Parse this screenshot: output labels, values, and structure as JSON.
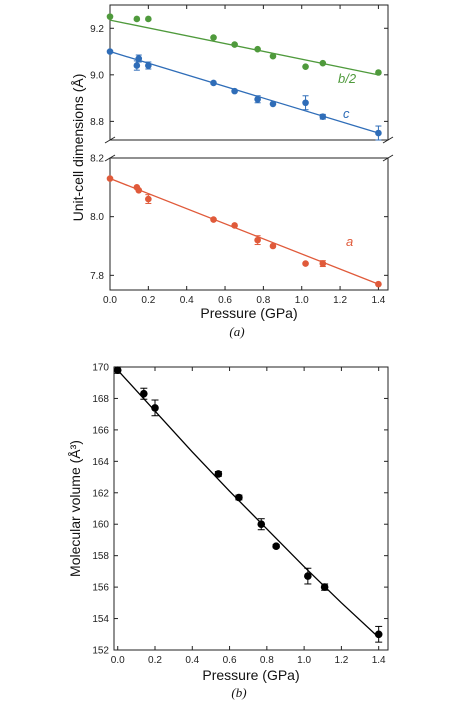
{
  "figure": {
    "panel_a_caption": "(a)",
    "panel_b_caption": "(b)"
  },
  "chart_data": [
    {
      "type": "scatter",
      "panel": "a",
      "xlabel": "Pressure (GPa)",
      "ylabel": "Unit-cell dimensions (Å)",
      "xlim": [
        0,
        1.45
      ],
      "x_ticks": [
        "0.0",
        "0.2",
        "0.4",
        "0.6",
        "0.8",
        "1.0",
        "1.2",
        "1.4"
      ],
      "y_break": true,
      "upper_ylim": [
        8.72,
        9.3
      ],
      "upper_y_ticks": [
        "8.8",
        "9.0",
        "9.2"
      ],
      "lower_ylim": [
        7.75,
        8.2
      ],
      "lower_y_ticks": [
        "7.8",
        "8.0",
        "8.2"
      ],
      "series": [
        {
          "name": "b/2",
          "color": "#4f9a3c",
          "segment": "upper",
          "x": [
            0.0,
            0.14,
            0.2,
            0.54,
            0.65,
            0.77,
            0.85,
            1.02,
            1.11,
            1.4
          ],
          "y": [
            9.25,
            9.24,
            9.24,
            9.16,
            9.13,
            9.11,
            9.08,
            9.035,
            9.05,
            9.01
          ],
          "err": [
            0,
            0,
            0,
            0,
            0,
            0,
            0,
            0,
            0,
            0
          ],
          "fit": [
            9.235,
            9.0
          ]
        },
        {
          "name": "c",
          "color": "#2f6db8",
          "segment": "upper",
          "x": [
            0.0,
            0.14,
            0.15,
            0.2,
            0.54,
            0.65,
            0.77,
            0.85,
            1.02,
            1.11,
            1.4
          ],
          "y": [
            9.1,
            9.04,
            9.07,
            9.04,
            8.965,
            8.93,
            8.895,
            8.875,
            8.88,
            8.82,
            8.75
          ],
          "err": [
            0,
            0.02,
            0.015,
            0.015,
            0,
            0,
            0.015,
            0,
            0.03,
            0.01,
            0.03
          ],
          "fit": [
            9.1,
            8.75
          ]
        },
        {
          "name": "a",
          "color": "#e05a3a",
          "segment": "lower",
          "x": [
            0.0,
            0.14,
            0.15,
            0.2,
            0.54,
            0.65,
            0.77,
            0.85,
            1.02,
            1.11,
            1.4
          ],
          "y": [
            8.13,
            8.1,
            8.09,
            8.06,
            7.99,
            7.97,
            7.92,
            7.9,
            7.84,
            7.84,
            7.77
          ],
          "err": [
            0,
            0,
            0,
            0.015,
            0,
            0,
            0.015,
            0,
            0,
            0.01,
            0
          ],
          "fit": [
            8.13,
            7.77
          ]
        }
      ]
    },
    {
      "type": "scatter",
      "panel": "b",
      "xlabel": "Pressure (GPa)",
      "ylabel": "Molecular volume (Å³)",
      "xlim": [
        -0.02,
        1.45
      ],
      "x_ticks": [
        "0.0",
        "0.2",
        "0.4",
        "0.6",
        "0.8",
        "1.0",
        "1.2",
        "1.4"
      ],
      "ylim": [
        152,
        170
      ],
      "y_ticks": [
        "152",
        "154",
        "156",
        "158",
        "160",
        "162",
        "164",
        "166",
        "168",
        "170"
      ],
      "series": [
        {
          "color": "#000000",
          "x": [
            0.0,
            0.14,
            0.2,
            0.54,
            0.65,
            0.77,
            0.85,
            1.02,
            1.11,
            1.4
          ],
          "y": [
            169.8,
            168.3,
            167.4,
            163.2,
            161.7,
            160.0,
            158.6,
            156.7,
            156.0,
            153.0
          ],
          "err": [
            0.2,
            0.35,
            0.5,
            0.15,
            0.15,
            0.35,
            0.1,
            0.5,
            0.2,
            0.5
          ],
          "fit_x": [
            0.0,
            0.2,
            0.4,
            0.6,
            0.8,
            1.0,
            1.2,
            1.4
          ],
          "fit_y": [
            169.8,
            167.2,
            164.6,
            162.1,
            159.7,
            157.3,
            155.0,
            152.8
          ]
        }
      ]
    }
  ]
}
